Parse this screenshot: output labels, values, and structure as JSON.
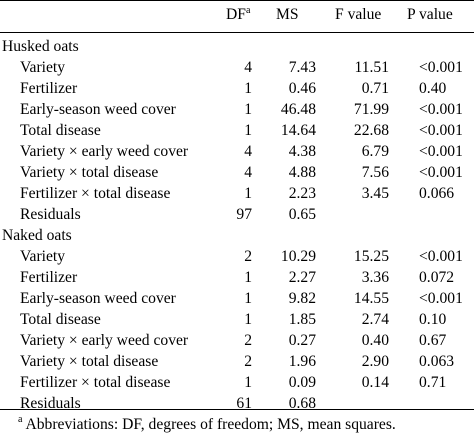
{
  "header": {
    "df": "DF",
    "df_sup": "a",
    "ms": "MS",
    "f": "F value",
    "p": "P value"
  },
  "sections": [
    {
      "label": "Husked oats",
      "rows": [
        {
          "term": "Variety",
          "df": "4",
          "ms": "7.43",
          "f": "11.51",
          "p": "<0.001"
        },
        {
          "term": "Fertilizer",
          "df": "1",
          "ms": "0.46",
          "f": "0.71",
          "p": "0.40"
        },
        {
          "term": "Early-season weed cover",
          "df": "1",
          "ms": "46.48",
          "f": "71.99",
          "p": "<0.001"
        },
        {
          "term": "Total disease",
          "df": "1",
          "ms": "14.64",
          "f": "22.68",
          "p": "<0.001"
        },
        {
          "term": "Variety × early weed cover",
          "df": "4",
          "ms": "4.38",
          "f": "6.79",
          "p": "<0.001"
        },
        {
          "term": "Variety × total disease",
          "df": "4",
          "ms": "4.88",
          "f": "7.56",
          "p": "<0.001"
        },
        {
          "term": "Fertilizer × total disease",
          "df": "1",
          "ms": "2.23",
          "f": "3.45",
          "p": "0.066"
        },
        {
          "term": "Residuals",
          "df": "97",
          "ms": "0.65",
          "f": "",
          "p": ""
        }
      ]
    },
    {
      "label": "Naked oats",
      "rows": [
        {
          "term": "Variety",
          "df": "2",
          "ms": "10.29",
          "f": "15.25",
          "p": "<0.001"
        },
        {
          "term": "Fertilizer",
          "df": "1",
          "ms": "2.27",
          "f": "3.36",
          "p": "0.072"
        },
        {
          "term": "Early-season weed cover",
          "df": "1",
          "ms": "9.82",
          "f": "14.55",
          "p": "<0.001"
        },
        {
          "term": "Total disease",
          "df": "1",
          "ms": "1.85",
          "f": "2.74",
          "p": "0.10"
        },
        {
          "term": "Variety × early weed cover",
          "df": "2",
          "ms": "0.27",
          "f": "0.40",
          "p": "0.67"
        },
        {
          "term": "Variety × total disease",
          "df": "2",
          "ms": "1.96",
          "f": "2.90",
          "p": "0.063"
        },
        {
          "term": "Fertilizer × total disease",
          "df": "1",
          "ms": "0.09",
          "f": "0.14",
          "p": "0.71"
        },
        {
          "term": "Residuals",
          "df": "61",
          "ms": "0.68",
          "f": "",
          "p": ""
        }
      ]
    }
  ],
  "footnote": {
    "sup": "a",
    "text": " Abbreviations: DF, degrees of freedom; MS, mean squares."
  }
}
